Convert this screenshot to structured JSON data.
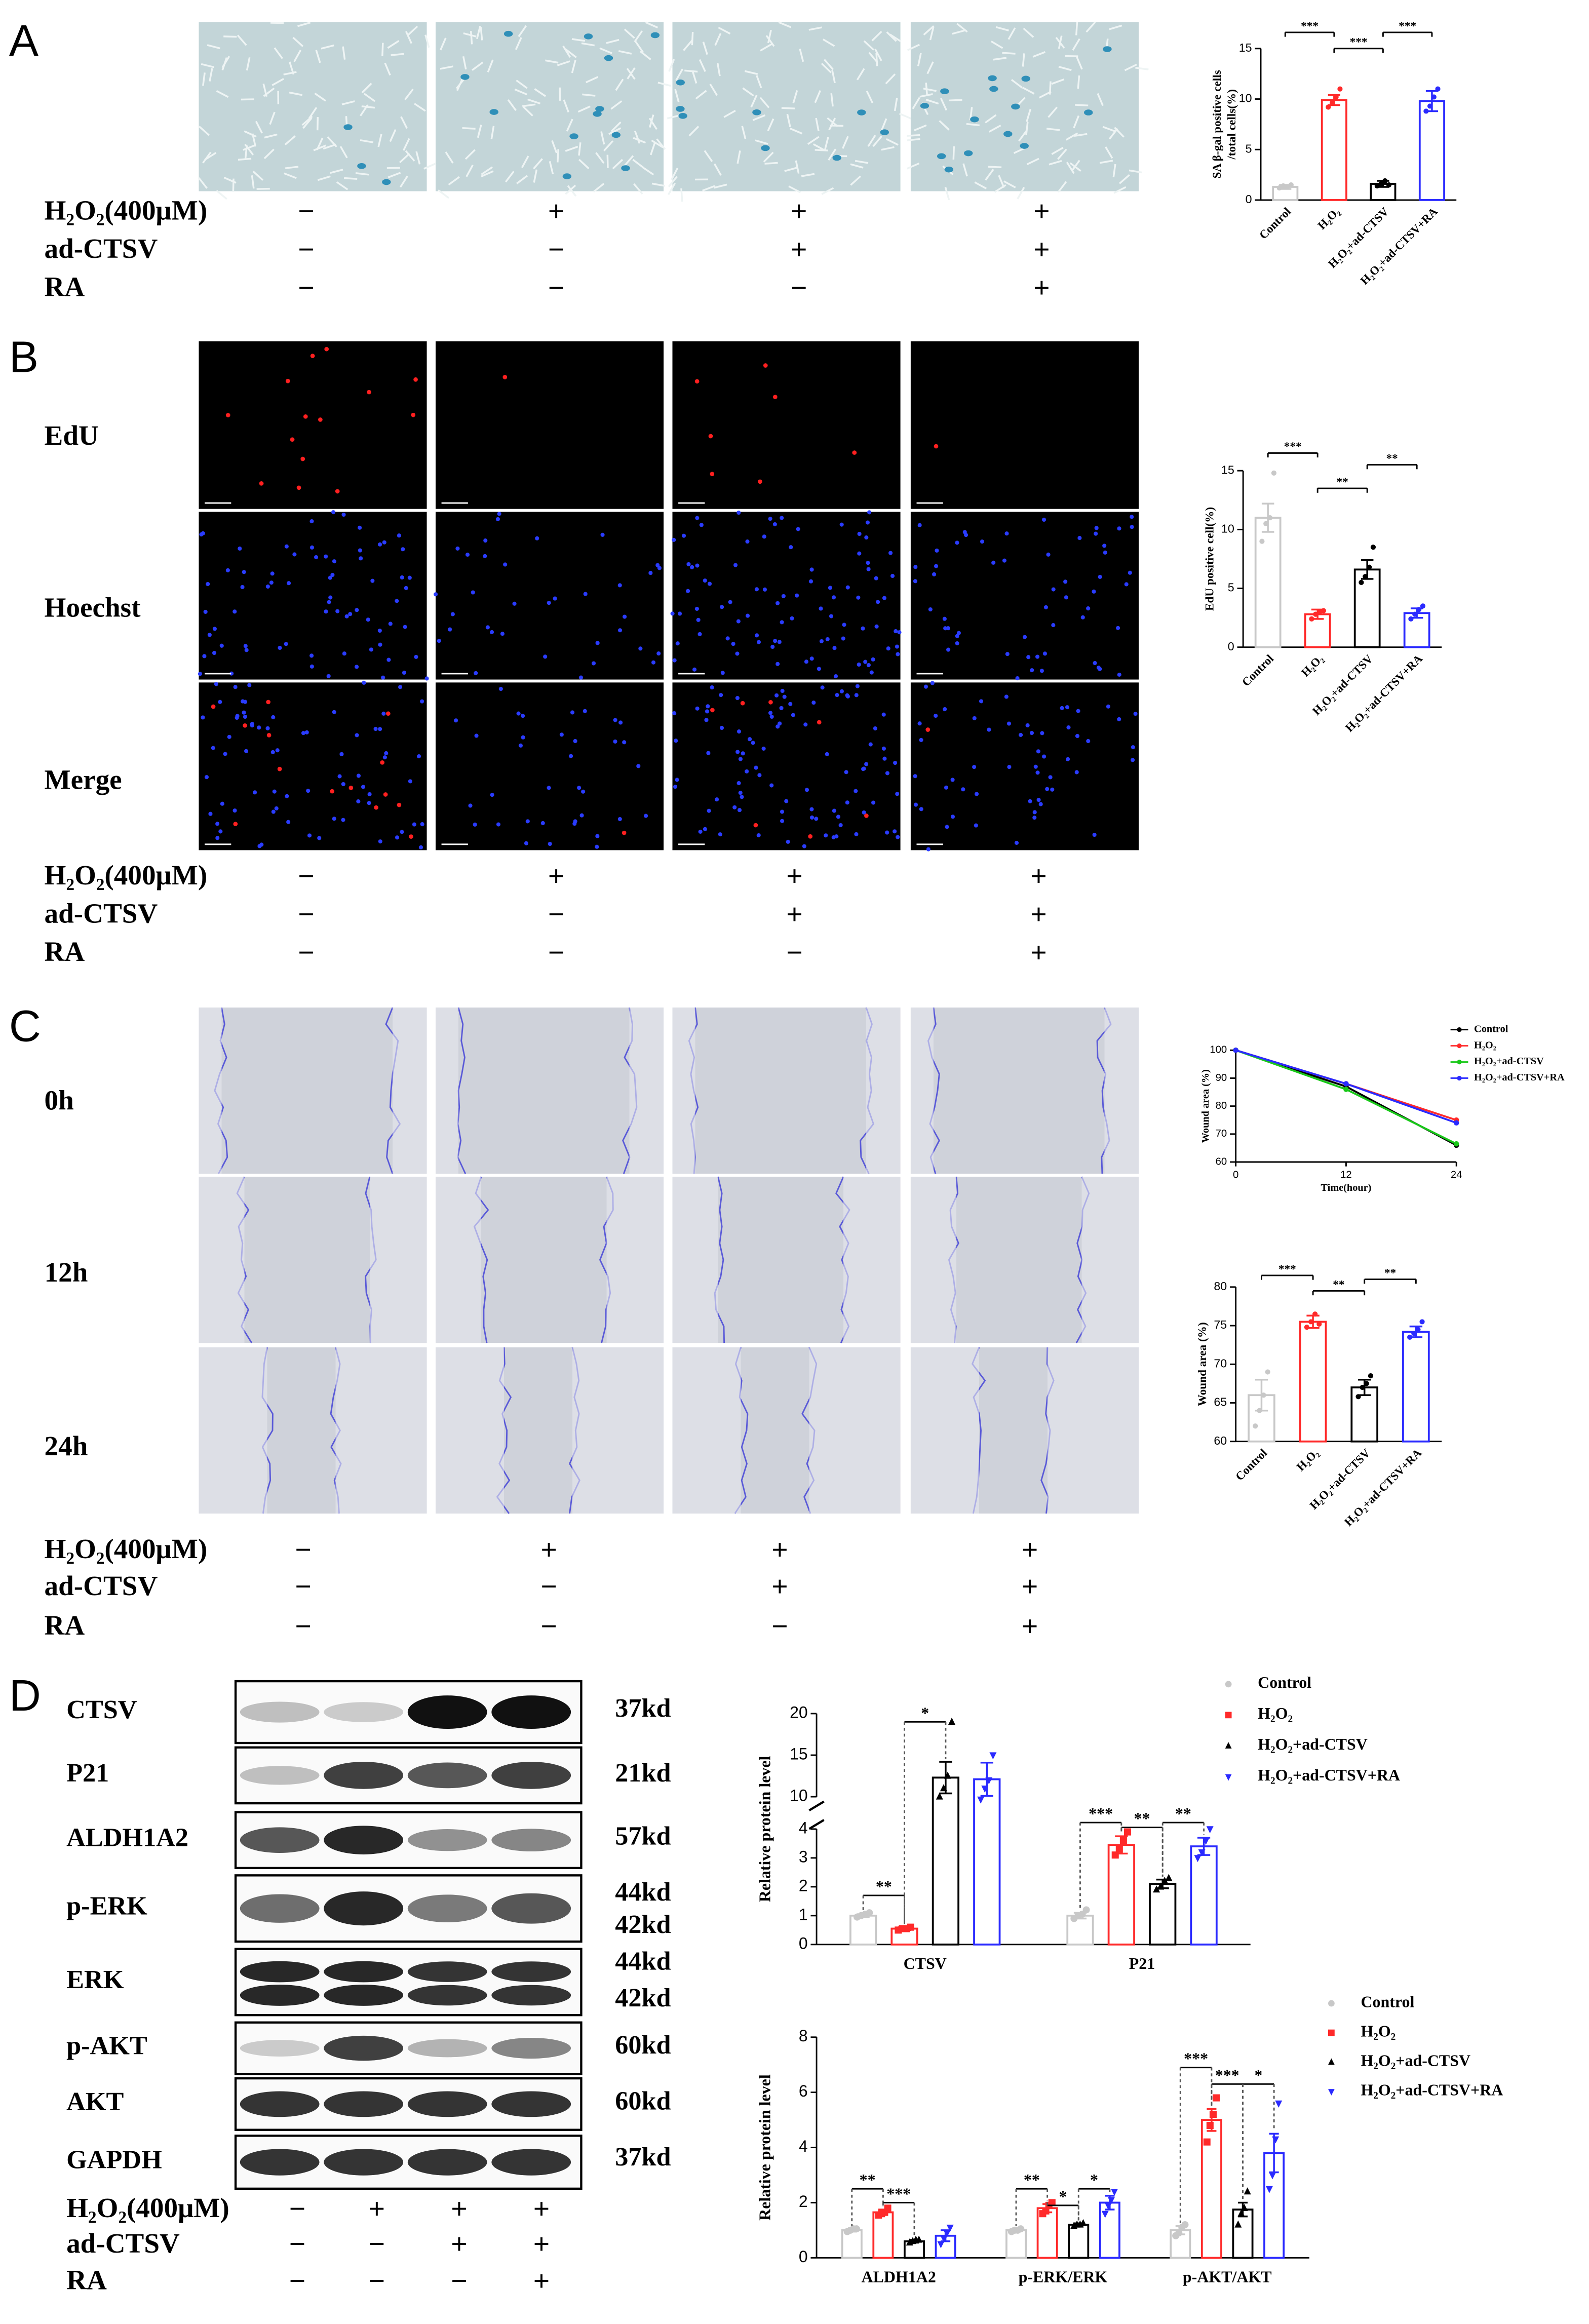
{
  "panels": [
    {
      "label": "A",
      "treatments": [
        {
          "label": "H₂O₂(400μM)",
          "signs": [
            "−",
            "+",
            "+",
            "+"
          ]
        },
        {
          "label": "ad-CTSV",
          "signs": [
            "−",
            "−",
            "+",
            "+"
          ]
        },
        {
          "label": "RA",
          "signs": [
            "−",
            "−",
            "−",
            "+"
          ]
        }
      ]
    },
    {
      "label": "B",
      "rows": [
        "EdU",
        "Hoechst",
        "Merge"
      ],
      "treatments": [
        {
          "label": "H₂O₂(400μM)",
          "signs": [
            "−",
            "+",
            "+",
            "+"
          ]
        },
        {
          "label": "ad-CTSV",
          "signs": [
            "−",
            "−",
            "+",
            "+"
          ]
        },
        {
          "label": "RA",
          "signs": [
            "−",
            "−",
            "−",
            "+"
          ]
        }
      ]
    },
    {
      "label": "C",
      "rows": [
        "0h",
        "12h",
        "24h"
      ],
      "treatments": [
        {
          "label": "H₂O₂(400μM)",
          "signs": [
            "−",
            "+",
            "+",
            "+"
          ]
        },
        {
          "label": "ad-CTSV",
          "signs": [
            "−",
            "−",
            "+",
            "+"
          ]
        },
        {
          "label": "RA",
          "signs": [
            "−",
            "−",
            "−",
            "+"
          ]
        }
      ]
    },
    {
      "label": "D",
      "blots": [
        {
          "name": "CTSV",
          "sizes": [
            "37kd"
          ]
        },
        {
          "name": "P21",
          "sizes": [
            "21kd"
          ]
        },
        {
          "name": "ALDH1A2",
          "sizes": [
            "57kd"
          ]
        },
        {
          "name": "p-ERK",
          "sizes": [
            "44kd",
            "42kd"
          ]
        },
        {
          "name": "ERK",
          "sizes": [
            "44kd",
            "42kd"
          ]
        },
        {
          "name": "p-AKT",
          "sizes": [
            "60kd"
          ]
        },
        {
          "name": "AKT",
          "sizes": [
            "60kd"
          ]
        },
        {
          "name": "GAPDH",
          "sizes": [
            "37kd"
          ]
        }
      ],
      "treatments": [
        {
          "label": "H₂O₂(400μM)",
          "signs": [
            "−",
            "+",
            "+",
            "+"
          ]
        },
        {
          "label": "ad-CTSV",
          "signs": [
            "−",
            "−",
            "+",
            "+"
          ]
        },
        {
          "label": "RA",
          "signs": [
            "−",
            "−",
            "−",
            "+"
          ]
        }
      ]
    }
  ],
  "chart_data": [
    {
      "type": "bar",
      "ylabel": [
        "SA β-gal positive cells",
        "/total cells(%)"
      ],
      "categories": [
        "Control",
        "H₂O₂",
        "H₂O₂+ad-CTSV",
        "H₂O₂+ad-CTSV+RA"
      ],
      "values": [
        1.3,
        9.9,
        1.6,
        9.8
      ],
      "errors": [
        0.2,
        0.5,
        0.3,
        1.0
      ],
      "points": [
        [
          1.2,
          1.4,
          1.3,
          1.5
        ],
        [
          9.2,
          9.6,
          10.2,
          11
        ],
        [
          1.4,
          1.6,
          1.9,
          1.5
        ],
        [
          8.8,
          9.3,
          10.2,
          11
        ]
      ],
      "colors": [
        "#c8c8c8",
        "#ff2a2a",
        "#000000",
        "#2a2aff"
      ],
      "ylim": [
        0,
        15
      ],
      "yticks": [
        0,
        5,
        10,
        15
      ],
      "annotations": [
        {
          "label": "***",
          "pair": [
            0,
            1
          ],
          "y": 16.6
        },
        {
          "label": "***",
          "pair": [
            1,
            2
          ],
          "y": 15
        },
        {
          "label": "***",
          "pair": [
            2,
            3
          ],
          "y": 16.6
        }
      ]
    },
    {
      "type": "bar",
      "ylabel": [
        "EdU positive cell(%)"
      ],
      "categories": [
        "Control",
        "H₂O₂",
        "H₂O₂+ad-CTSV",
        "H₂O₂+ad-CTSV+RA"
      ],
      "values": [
        11,
        2.8,
        6.6,
        2.9
      ],
      "errors": [
        1.2,
        0.4,
        0.8,
        0.4
      ],
      "points": [
        [
          9,
          10.5,
          11,
          14.8
        ],
        [
          2.4,
          2.8,
          3,
          3.1
        ],
        [
          5.5,
          6,
          6.8,
          8.5
        ],
        [
          2.4,
          2.8,
          3.2,
          3.5
        ]
      ],
      "colors": [
        "#c8c8c8",
        "#ff2a2a",
        "#000000",
        "#2a2aff"
      ],
      "ylim": [
        0,
        15
      ],
      "yticks": [
        0,
        5,
        10,
        15
      ],
      "annotations": [
        {
          "label": "***",
          "pair": [
            0,
            1
          ],
          "y": 16.5
        },
        {
          "label": "**",
          "pair": [
            1,
            2
          ],
          "y": 13.5
        },
        {
          "label": "**",
          "pair": [
            2,
            3
          ],
          "y": 15.5
        }
      ]
    },
    {
      "type": "line",
      "xlabel": "Time(hour)",
      "ylabel": [
        "Wound area (%)"
      ],
      "x": [
        0,
        12,
        24
      ],
      "xlim": [
        0,
        24
      ],
      "xticks": [
        0,
        12,
        24
      ],
      "ylim": [
        60,
        100
      ],
      "yticks": [
        60,
        70,
        80,
        90,
        100
      ],
      "legend": "upper right",
      "series": [
        {
          "name": "Control",
          "color": "#000000",
          "values": [
            100,
            87,
            66
          ]
        },
        {
          "name": "H₂O₂",
          "color": "#ff2a2a",
          "values": [
            100,
            88,
            75
          ]
        },
        {
          "name": "H₂O₂+ad-CTSV",
          "color": "#19c819",
          "values": [
            100,
            86,
            66.5
          ]
        },
        {
          "name": "H₂O₂+ad-CTSV+RA",
          "color": "#2a2aff",
          "values": [
            100,
            88,
            74
          ]
        }
      ]
    },
    {
      "type": "bar",
      "ylabel": [
        "Wound area (%)"
      ],
      "categories": [
        "Control",
        "H₂O₂",
        "H₂O₂+ad-CTSV",
        "H₂O₂+ad-CTSV+RA"
      ],
      "values": [
        66,
        75.5,
        67,
        74.2
      ],
      "errors": [
        2,
        0.8,
        1,
        0.7
      ],
      "points": [
        [
          62,
          64,
          66,
          69
        ],
        [
          74.8,
          75.5,
          76.5,
          75.2
        ],
        [
          65.8,
          67,
          67.5,
          68.5
        ],
        [
          73.5,
          74,
          74.5,
          75.5
        ]
      ],
      "colors": [
        "#c8c8c8",
        "#ff2a2a",
        "#000000",
        "#2a2aff"
      ],
      "ylim": [
        60,
        80
      ],
      "yticks": [
        60,
        65,
        70,
        75,
        80
      ],
      "annotations": [
        {
          "label": "***",
          "pair": [
            0,
            1
          ],
          "y": 81.5
        },
        {
          "label": "**",
          "pair": [
            1,
            2
          ],
          "y": 79.5
        },
        {
          "label": "**",
          "pair": [
            2,
            3
          ],
          "y": 81
        }
      ]
    },
    {
      "type": "bar",
      "ylabel": [
        "Relative protein level"
      ],
      "categories": [
        "CTSV",
        "P21"
      ],
      "ylim": [
        0,
        20
      ],
      "ybreak": [
        4,
        10
      ],
      "yticks": [
        0,
        1,
        2,
        3,
        4,
        10,
        15,
        20
      ],
      "legend": "upper right",
      "series": [
        {
          "name": "Control",
          "color": "#c8c8c8",
          "marker": "circle",
          "values": [
            1.0,
            1.0
          ],
          "errors": [
            0.05,
            0.1
          ],
          "points": [
            [
              0.95,
              1.0,
              1.05,
              1.1
            ],
            [
              0.9,
              1.0,
              1.05,
              1.2
            ]
          ]
        },
        {
          "name": "H₂O₂",
          "color": "#ff2a2a",
          "marker": "square",
          "values": [
            0.55,
            3.45
          ],
          "errors": [
            0.05,
            0.3
          ],
          "points": [
            [
              0.5,
              0.55,
              0.55,
              0.6
            ],
            [
              3.1,
              3.3,
              3.6,
              3.9
            ]
          ]
        },
        {
          "name": "H₂O₂+ad-CTSV",
          "color": "#000000",
          "marker": "triangle",
          "values": [
            12.3,
            2.1
          ],
          "errors": [
            1.9,
            0.15
          ],
          "points": [
            [
              10,
              11,
              12.5,
              19
            ],
            [
              1.9,
              2.0,
              2.2,
              2.3
            ]
          ]
        },
        {
          "name": "H₂O₂+ad-CTSV+RA",
          "color": "#2a2aff",
          "marker": "triangle-down",
          "values": [
            12.1,
            3.4
          ],
          "errors": [
            2.0,
            0.3
          ],
          "points": [
            [
              9.5,
              11,
              12,
              15
            ],
            [
              3.0,
              3.2,
              3.6,
              4.0
            ]
          ]
        }
      ],
      "annotations": [
        {
          "label": "**",
          "group": 0,
          "pair": [
            0,
            1
          ],
          "y": 1.7
        },
        {
          "label": "*",
          "group": 0,
          "pair": [
            1,
            2
          ],
          "y": 19
        },
        {
          "label": "***",
          "group": 1,
          "pair": [
            0,
            1
          ],
          "y": 5.2
        },
        {
          "label": "**",
          "group": 1,
          "pair": [
            1,
            2
          ],
          "y": 4.3
        },
        {
          "label": "**",
          "group": 1,
          "pair": [
            2,
            3
          ],
          "y": 5.2
        }
      ]
    },
    {
      "type": "bar",
      "ylabel": [
        "Relative protein level"
      ],
      "categories": [
        "ALDH1A2",
        "p-ERK/ERK",
        "p-AKT/AKT"
      ],
      "ylim": [
        0,
        8
      ],
      "yticks": [
        0,
        2,
        4,
        6,
        8
      ],
      "legend": "upper right",
      "series": [
        {
          "name": "Control",
          "color": "#c8c8c8",
          "marker": "circle",
          "values": [
            1.0,
            1.0,
            1.0
          ],
          "errors": [
            0.05,
            0.05,
            0.15
          ],
          "points": [
            [
              0.95,
              1.0,
              1.05,
              1.05
            ],
            [
              0.95,
              1,
              1,
              1.05
            ],
            [
              0.8,
              0.9,
              1.1,
              1.2
            ]
          ]
        },
        {
          "name": "H₂O₂",
          "color": "#ff2a2a",
          "marker": "square",
          "values": [
            1.65,
            1.8,
            5.0
          ],
          "errors": [
            0.1,
            0.15,
            0.4
          ],
          "points": [
            [
              1.55,
              1.6,
              1.65,
              1.8
            ],
            [
              1.6,
              1.7,
              1.9,
              2.0
            ],
            [
              4.2,
              4.8,
              5.2,
              5.8
            ]
          ]
        },
        {
          "name": "H₂O₂+ad-CTSV",
          "color": "#000000",
          "marker": "triangle",
          "values": [
            0.6,
            1.2,
            1.75
          ],
          "errors": [
            0.05,
            0.05,
            0.25
          ],
          "points": [
            [
              0.55,
              0.6,
              0.65,
              0.65
            ],
            [
              1.15,
              1.2,
              1.2,
              1.25
            ],
            [
              1.2,
              1.6,
              1.8,
              2.4
            ]
          ]
        },
        {
          "name": "H₂O₂+ad-CTSV+RA",
          "color": "#2a2aff",
          "marker": "triangle-down",
          "values": [
            0.8,
            2.0,
            3.8
          ],
          "errors": [
            0.2,
            0.25,
            0.7
          ],
          "points": [
            [
              0.5,
              0.7,
              0.9,
              1.1
            ],
            [
              1.6,
              1.9,
              2.1,
              2.4
            ],
            [
              2.5,
              3,
              4.3,
              5.6
            ]
          ]
        }
      ],
      "annotations": [
        {
          "label": "**",
          "group": 0,
          "pair": [
            0,
            1
          ],
          "y": 2.5
        },
        {
          "label": "***",
          "group": 0,
          "pair": [
            1,
            2
          ],
          "y": 2.0
        },
        {
          "label": "**",
          "group": 1,
          "pair": [
            0,
            1
          ],
          "y": 2.5
        },
        {
          "label": "*",
          "group": 1,
          "pair": [
            1,
            2
          ],
          "y": 1.9
        },
        {
          "label": "*",
          "group": 1,
          "pair": [
            2,
            3
          ],
          "y": 2.5
        },
        {
          "label": "***",
          "group": 2,
          "pair": [
            0,
            1
          ],
          "y": 6.9
        },
        {
          "label": "***",
          "group": 2,
          "pair": [
            1,
            2
          ],
          "y": 6.3
        },
        {
          "label": "*",
          "group": 2,
          "pair": [
            2,
            3
          ],
          "y": 6.3
        }
      ]
    }
  ]
}
